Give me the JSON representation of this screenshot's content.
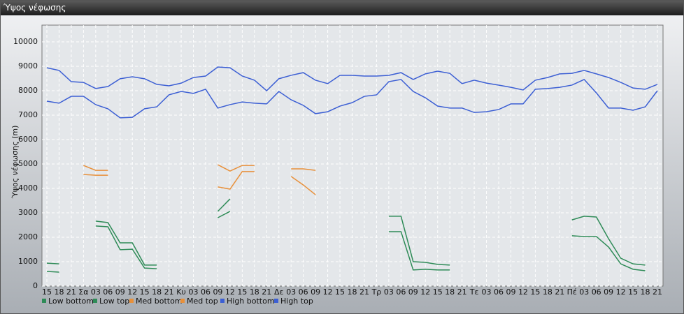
{
  "window_title": "Ύψος νέφωσης",
  "chart_data": {
    "type": "line",
    "y_label": "Ύψος νέφωσης (m)",
    "categories": [
      "15",
      "18",
      "21",
      "Σα",
      "03",
      "06",
      "09",
      "12",
      "15",
      "18",
      "21",
      "Κυ",
      "03",
      "06",
      "09",
      "12",
      "15",
      "18",
      "21",
      "Δε",
      "03",
      "06",
      "09",
      "12",
      "15",
      "18",
      "21",
      "Τρ",
      "03",
      "06",
      "09",
      "12",
      "15",
      "18",
      "21",
      "Τε",
      "03",
      "06",
      "09",
      "12",
      "15",
      "18",
      "21",
      "Πέ",
      "03",
      "06",
      "09",
      "12",
      "15",
      "18",
      "21"
    ],
    "ylim": [
      0,
      10000
    ],
    "yticks": [
      0,
      1000,
      2000,
      3000,
      4000,
      5000,
      6000,
      7000,
      8000,
      9000,
      10000
    ],
    "grid": true,
    "series": [
      {
        "name": "Low bottom",
        "color": "#2e8b57",
        "values": [
          600,
          570,
          null,
          null,
          2460,
          2430,
          1490,
          1510,
          740,
          710,
          null,
          null,
          null,
          null,
          2800,
          3060,
          null,
          null,
          null,
          null,
          null,
          null,
          null,
          null,
          null,
          null,
          null,
          null,
          2230,
          2230,
          660,
          690,
          660,
          660,
          null,
          null,
          null,
          null,
          null,
          null,
          null,
          null,
          null,
          2060,
          2030,
          2030,
          1600,
          910,
          690,
          630,
          null
        ]
      },
      {
        "name": "Low top",
        "color": "#2e8b57",
        "values": [
          940,
          910,
          null,
          null,
          2660,
          2600,
          1770,
          1770,
          860,
          860,
          null,
          null,
          null,
          null,
          3060,
          3570,
          null,
          null,
          null,
          null,
          null,
          null,
          null,
          null,
          null,
          null,
          null,
          null,
          2860,
          2860,
          1000,
          970,
          890,
          860,
          null,
          null,
          null,
          null,
          null,
          null,
          null,
          null,
          null,
          2710,
          2860,
          2830,
          1940,
          1140,
          910,
          860,
          null
        ]
      },
      {
        "name": "Med bottom",
        "color": "#e8903a",
        "values": [
          null,
          null,
          null,
          4570,
          4540,
          4540,
          null,
          null,
          null,
          null,
          null,
          null,
          null,
          null,
          4060,
          3970,
          4690,
          4690,
          null,
          null,
          4490,
          4140,
          3740,
          null,
          null,
          null,
          null,
          null,
          null,
          null,
          null,
          null,
          null,
          null,
          null,
          null,
          null,
          null,
          null,
          null,
          null,
          null,
          null,
          null,
          null,
          null,
          null,
          null,
          null,
          null,
          null
        ]
      },
      {
        "name": "Med top",
        "color": "#e8903a",
        "values": [
          null,
          null,
          null,
          4940,
          4740,
          4740,
          null,
          null,
          null,
          null,
          null,
          null,
          null,
          null,
          4970,
          4710,
          4940,
          4940,
          null,
          null,
          4800,
          4800,
          4740,
          null,
          null,
          null,
          null,
          null,
          null,
          null,
          null,
          null,
          null,
          null,
          null,
          null,
          null,
          null,
          null,
          null,
          null,
          null,
          null,
          null,
          null,
          null,
          null,
          null,
          null,
          null,
          null
        ]
      },
      {
        "name": "High bottom",
        "color": "#3c5fd4",
        "values": [
          7570,
          7490,
          7770,
          7770,
          7430,
          7260,
          6890,
          6910,
          7260,
          7340,
          7830,
          7970,
          7890,
          8060,
          7290,
          7430,
          7540,
          7490,
          7460,
          7970,
          7630,
          7400,
          7060,
          7140,
          7370,
          7510,
          7770,
          7830,
          8370,
          8460,
          7970,
          7710,
          7370,
          7290,
          7290,
          7110,
          7140,
          7230,
          7460,
          7460,
          8060,
          8090,
          8140,
          8230,
          8460,
          7910,
          7290,
          7290,
          7200,
          7340,
          8000
        ]
      },
      {
        "name": "High top",
        "color": "#3c5fd4",
        "values": [
          8940,
          8830,
          8370,
          8340,
          8090,
          8170,
          8490,
          8570,
          8490,
          8260,
          8200,
          8310,
          8540,
          8600,
          8970,
          8940,
          8600,
          8430,
          8000,
          8490,
          8630,
          8740,
          8430,
          8290,
          8630,
          8630,
          8600,
          8600,
          8630,
          8740,
          8460,
          8690,
          8800,
          8710,
          8290,
          8430,
          8310,
          8230,
          8140,
          8030,
          8430,
          8540,
          8690,
          8710,
          8830,
          8690,
          8540,
          8340,
          8110,
          8060,
          8260
        ]
      }
    ]
  }
}
